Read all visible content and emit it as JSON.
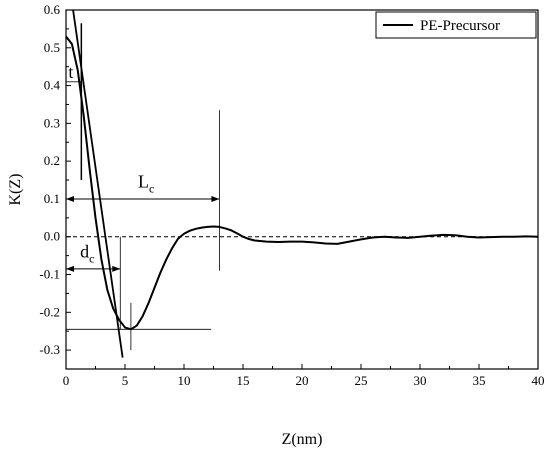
{
  "chart_data": {
    "type": "line",
    "xlabel": "Z(nm)",
    "ylabel": "K(Z)",
    "xlim": [
      0,
      40
    ],
    "ylim": [
      -0.35,
      0.6
    ],
    "x_ticks": [
      0,
      5,
      10,
      15,
      20,
      25,
      30,
      35,
      40
    ],
    "y_ticks": [
      -0.3,
      -0.2,
      -0.1,
      0.0,
      0.1,
      0.2,
      0.3,
      0.4,
      0.5,
      0.6
    ],
    "legend_position": "top-right",
    "series": [
      {
        "name": "PE-Precursor",
        "color": "#000000",
        "x": [
          0,
          0.5,
          1,
          1.5,
          2,
          2.5,
          3,
          3.5,
          4,
          4.5,
          5,
          5.5,
          6,
          6.5,
          7,
          7.5,
          8,
          8.5,
          9,
          9.5,
          10,
          10.5,
          11,
          11.5,
          12,
          12.5,
          13,
          13.5,
          14,
          14.5,
          15,
          15.5,
          16,
          17,
          18,
          19,
          20,
          21,
          22,
          23,
          24,
          25,
          26,
          27,
          28,
          29,
          30,
          31,
          32,
          33,
          34,
          35,
          36,
          37,
          38,
          39,
          40
        ],
        "y": [
          0.53,
          0.51,
          0.44,
          0.32,
          0.18,
          0.05,
          -0.06,
          -0.14,
          -0.19,
          -0.22,
          -0.24,
          -0.245,
          -0.235,
          -0.21,
          -0.175,
          -0.135,
          -0.095,
          -0.06,
          -0.03,
          -0.005,
          0.008,
          0.016,
          0.021,
          0.024,
          0.026,
          0.027,
          0.026,
          0.022,
          0.017,
          0.009,
          0.0,
          -0.006,
          -0.01,
          -0.013,
          -0.014,
          -0.013,
          -0.013,
          -0.015,
          -0.018,
          -0.019,
          -0.013,
          -0.007,
          -0.002,
          0.0,
          -0.002,
          -0.003,
          0.0,
          0.003,
          0.005,
          0.004,
          0.0,
          -0.002,
          -0.001,
          0.0,
          0.0,
          0.001,
          0.0
        ]
      }
    ],
    "annotations": {
      "t": "t",
      "lc_main": "L",
      "lc_sub": "c",
      "dc_main": "d",
      "dc_sub": "c"
    }
  }
}
